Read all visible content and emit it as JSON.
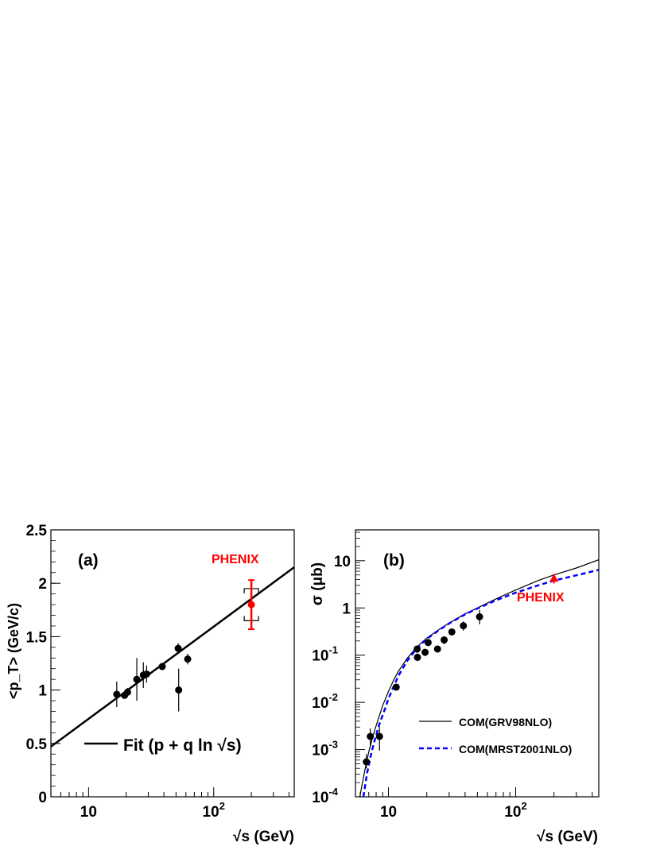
{
  "chart_data": [
    {
      "type": "scatter",
      "panel_label": "(a)",
      "title": "",
      "xlabel": "√s (GeV)",
      "ylabel": "<p_T> (GeV/c)",
      "xscale": "log",
      "xlim": [
        5,
        440
      ],
      "ylim": [
        0,
        2.5
      ],
      "x_ticklabels": [
        {
          "value": 10,
          "label": "10"
        },
        {
          "value": 100,
          "label": "10",
          "sup": "2"
        }
      ],
      "y_ticks": [
        0,
        0.5,
        1,
        1.5,
        2,
        2.5
      ],
      "y_ticklabels": [
        "0",
        "0.5",
        "1",
        "1.5",
        "2",
        "2.5"
      ],
      "grid": false,
      "annotation": "PHENIX",
      "legend": {
        "label": "Fit (p + q ln √s)",
        "placement": "bottom-left"
      },
      "fit": {
        "label": "Fit (p + q ln √s)",
        "x": [
          5,
          440
        ],
        "y": [
          0.47,
          2.15
        ]
      },
      "series": [
        {
          "color": "#000000",
          "points": [
            {
              "x": 16.8,
              "y": 0.96,
              "err": 0.12
            },
            {
              "x": 19.4,
              "y": 0.95,
              "err": 0.03
            },
            {
              "x": 20.5,
              "y": 0.98,
              "err": 0.04
            },
            {
              "x": 24.3,
              "y": 1.1,
              "err": 0.2
            },
            {
              "x": 27.4,
              "y": 1.14,
              "err": 0.12
            },
            {
              "x": 29.1,
              "y": 1.15,
              "err": 0.08
            },
            {
              "x": 38.8,
              "y": 1.22,
              "err": 0.03
            },
            {
              "x": 52.0,
              "y": 1.39,
              "err": 0.05
            },
            {
              "x": 52.5,
              "y": 1.0,
              "err": 0.2
            },
            {
              "x": 62.0,
              "y": 1.29,
              "err": 0.05
            }
          ]
        },
        {
          "name": "PHENIX",
          "color": "#ff0000",
          "points": [
            {
              "x": 200,
              "y": 1.8,
              "err": 0.23,
              "sys": 0.15
            }
          ]
        }
      ]
    },
    {
      "type": "scatter",
      "panel_label": "(b)",
      "title": "",
      "xlabel": "√s (GeV)",
      "ylabel": "σ (μb)",
      "xscale": "log",
      "yscale": "log",
      "xlim": [
        5.5,
        450
      ],
      "ylim": [
        0.0001,
        45
      ],
      "x_ticklabels": [
        {
          "value": 10,
          "label": "10"
        },
        {
          "value": 100,
          "label": "10",
          "sup": "2"
        }
      ],
      "y_ticklabels": [
        {
          "value": 0.0001,
          "label": "10",
          "sup": "-4"
        },
        {
          "value": 0.001,
          "label": "10",
          "sup": "-3"
        },
        {
          "value": 0.01,
          "label": "10",
          "sup": "-2"
        },
        {
          "value": 0.1,
          "label": "10",
          "sup": "-1"
        },
        {
          "value": 1,
          "label": "1"
        },
        {
          "value": 10,
          "label": "10"
        }
      ],
      "grid": false,
      "annotation": "PHENIX",
      "legend": {
        "placement": "bottom-right"
      },
      "curves": [
        {
          "name": "COM(GRV98NLO)",
          "color": "#000000",
          "style": "solid",
          "x": [
            5.95,
            6.5,
            7.0,
            7.5,
            8.0,
            9.0,
            10.0,
            11.0,
            12.0,
            14.0,
            16.0,
            18.0,
            20.0,
            25.0,
            30.0,
            40.0,
            50.0,
            70.0,
            100.0,
            150.0,
            200.0,
            300.0,
            450.0
          ],
          "y": [
            0.0001,
            0.00035,
            0.0009,
            0.0018,
            0.0032,
            0.0085,
            0.017,
            0.03,
            0.046,
            0.085,
            0.13,
            0.18,
            0.23,
            0.35,
            0.48,
            0.75,
            1.0,
            1.55,
            2.4,
            3.8,
            5.0,
            7.0,
            10.5
          ]
        },
        {
          "name": "COM(MRST2001NLO)",
          "color": "#0000ff",
          "style": "dashed",
          "x": [
            6.35,
            6.8,
            7.3,
            7.8,
            8.5,
            9.5,
            10.0,
            11.0,
            12.0,
            14.0,
            16.0,
            18.0,
            20.0,
            25.0,
            30.0,
            40.0,
            50.0,
            70.0,
            100.0,
            150.0,
            200.0,
            300.0,
            450.0
          ],
          "y": [
            0.0001,
            0.00032,
            0.0008,
            0.0016,
            0.0035,
            0.008,
            0.012,
            0.022,
            0.037,
            0.075,
            0.12,
            0.17,
            0.22,
            0.34,
            0.47,
            0.73,
            0.97,
            1.45,
            2.1,
            3.0,
            3.8,
            4.9,
            6.4
          ]
        }
      ],
      "series": [
        {
          "color": "#000000",
          "points": [
            {
              "x": 6.7,
              "y": 0.00055,
              "lo": 0.0004,
              "hi": 0.0008
            },
            {
              "x": 7.2,
              "y": 0.0019,
              "lo": 0.0012,
              "hi": 0.0028
            },
            {
              "x": 8.5,
              "y": 0.0019,
              "lo": 0.00095,
              "hi": 0.003
            },
            {
              "x": 11.5,
              "y": 0.021,
              "lo": 0.018,
              "hi": 0.024
            },
            {
              "x": 16.8,
              "y": 0.135,
              "lo": 0.11,
              "hi": 0.16
            },
            {
              "x": 16.9,
              "y": 0.09,
              "lo": 0.075,
              "hi": 0.105
            },
            {
              "x": 19.4,
              "y": 0.115,
              "lo": 0.095,
              "hi": 0.135
            },
            {
              "x": 20.5,
              "y": 0.185,
              "lo": 0.16,
              "hi": 0.21
            },
            {
              "x": 24.3,
              "y": 0.135,
              "lo": 0.115,
              "hi": 0.16
            },
            {
              "x": 27.4,
              "y": 0.21,
              "lo": 0.17,
              "hi": 0.25
            },
            {
              "x": 31.5,
              "y": 0.31,
              "lo": 0.27,
              "hi": 0.36
            },
            {
              "x": 38.8,
              "y": 0.42,
              "lo": 0.33,
              "hi": 0.52
            },
            {
              "x": 52.0,
              "y": 0.65,
              "lo": 0.45,
              "hi": 0.9
            }
          ]
        },
        {
          "name": "PHENIX",
          "color": "#ff0000",
          "marker": "triangle",
          "points": [
            {
              "x": 200,
              "y": 4.2,
              "lo": 3.3,
              "hi": 5.2
            }
          ]
        }
      ]
    }
  ]
}
